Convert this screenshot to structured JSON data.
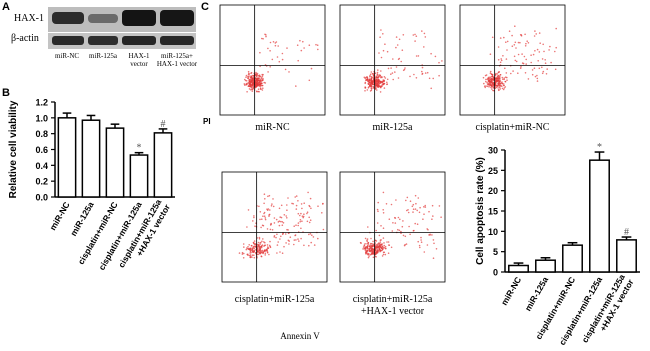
{
  "panel_labels": {
    "a": "A",
    "b": "B",
    "c": "C"
  },
  "blot": {
    "rows": [
      "HAX-1",
      "β-actin"
    ],
    "lanes": [
      [
        "miR-NC"
      ],
      [
        "miR-125a"
      ],
      [
        "HAX-1",
        "vector"
      ],
      [
        "miR-125a+",
        "HAX-1 vector"
      ]
    ]
  },
  "flow": {
    "y_label": "PI",
    "x_label": "Annexin V",
    "plots": [
      [
        "miR-NC"
      ],
      [
        "miR-125a"
      ],
      [
        "cisplatin+miR-NC"
      ],
      [
        "cisplatin+miR-125a"
      ],
      [
        "cisplatin+miR-125a",
        "+HAX-1 vector"
      ]
    ]
  },
  "chart_data": [
    {
      "type": "bar",
      "y_label": "Relative cell viability",
      "categories": [
        [
          "miR-NC"
        ],
        [
          "miR-125a"
        ],
        [
          "cisplatin+miR-NC"
        ],
        [
          "cisplatin+miR-125a"
        ],
        [
          "cisplatin+miR-125a",
          "+HAX-1 vector"
        ]
      ],
      "values": [
        1.0,
        0.97,
        0.87,
        0.53,
        0.81
      ],
      "errors": [
        0.06,
        0.06,
        0.05,
        0.03,
        0.05
      ],
      "value_annotations": [
        null,
        null,
        null,
        "*",
        "#"
      ],
      "ylim": [
        0,
        1.2
      ],
      "yticks": [
        {
          "value": 0,
          "label": "0.0"
        },
        0.2,
        0.4,
        0.6,
        0.8,
        {
          "value": 1,
          "label": "1.0"
        },
        1.2
      ]
    },
    {
      "type": "bar",
      "y_label": "Cell apoptosis rate (%)",
      "categories": [
        [
          "miR-NC"
        ],
        [
          "miR-125a"
        ],
        [
          "cisplatin+miR-NC"
        ],
        [
          "cisplatin+miR-125a"
        ],
        [
          "cisplatin+miR-125a",
          "+HAX-1 vector"
        ]
      ],
      "values": [
        1.6,
        2.9,
        6.6,
        27.5,
        7.9
      ],
      "errors": [
        0.6,
        0.6,
        0.6,
        2.0,
        0.7
      ],
      "value_annotations": [
        null,
        null,
        null,
        "*",
        "#"
      ],
      "ylim": [
        0,
        30
      ],
      "yticks": [
        0,
        5,
        10,
        15,
        20,
        25,
        30
      ]
    }
  ]
}
